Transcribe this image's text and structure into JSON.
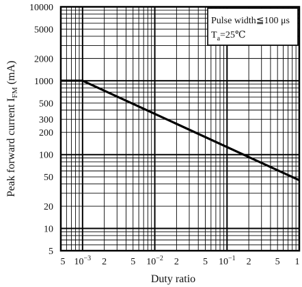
{
  "chart_data": {
    "type": "line",
    "x_scale": "log",
    "y_scale": "log",
    "xlim": [
      0.0005,
      1
    ],
    "ylim": [
      5,
      10000
    ],
    "xlabel": "Duty ratio",
    "ylabel": "Peak forward current I",
    "ylabel_subscript": "FM",
    "ylabel_unit": " (mA)",
    "grid": true,
    "x_tick_labels": [
      {
        "x": 0.0005,
        "label": "5"
      },
      {
        "x": 0.001,
        "base": "10",
        "exp": "−3"
      },
      {
        "x": 0.002,
        "label": "2"
      },
      {
        "x": 0.005,
        "label": "5"
      },
      {
        "x": 0.01,
        "base": "10",
        "exp": "−2"
      },
      {
        "x": 0.02,
        "label": "2"
      },
      {
        "x": 0.05,
        "label": "5"
      },
      {
        "x": 0.1,
        "base": "10",
        "exp": "−1"
      },
      {
        "x": 0.2,
        "label": "2"
      },
      {
        "x": 0.5,
        "label": "5"
      },
      {
        "x": 1,
        "label": "1"
      }
    ],
    "y_tick_labels": [
      {
        "y": 10000,
        "label": "10000"
      },
      {
        "y": 5000,
        "label": "5000"
      },
      {
        "y": 2000,
        "label": "2000"
      },
      {
        "y": 1000,
        "label": "1000"
      },
      {
        "y": 500,
        "label": "500"
      },
      {
        "y": 300,
        "label": "300"
      },
      {
        "y": 200,
        "label": "200"
      },
      {
        "y": 100,
        "label": "100"
      },
      {
        "y": 50,
        "label": "50"
      },
      {
        "y": 20,
        "label": "20"
      },
      {
        "y": 10,
        "label": "10"
      },
      {
        "y": 5,
        "label": "5"
      }
    ],
    "series": [
      {
        "points": [
          [
            0.0005,
            1000
          ],
          [
            0.001,
            1000
          ],
          [
            1,
            45
          ]
        ],
        "color": "#000000"
      }
    ],
    "annotation": {
      "line1": "Pulse width≦100 μs",
      "line2_pre": "T",
      "line2_sub": "a",
      "line2_post": "=25℃"
    }
  }
}
